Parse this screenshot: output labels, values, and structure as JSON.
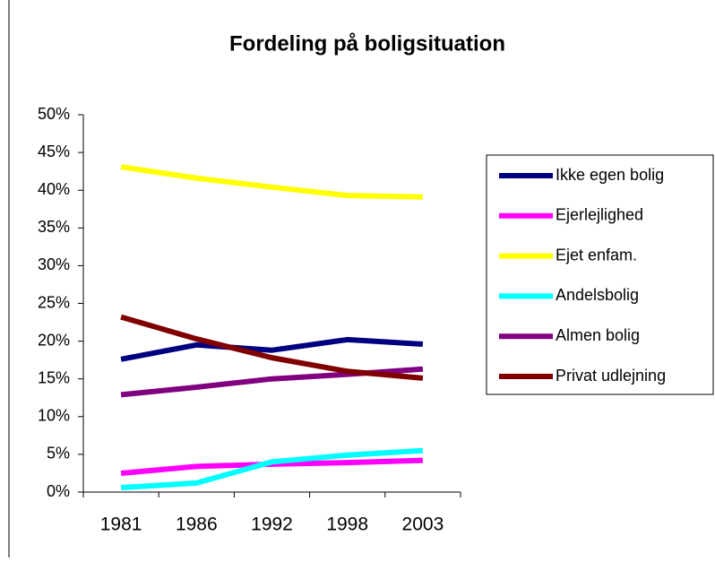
{
  "chart_data": {
    "type": "line",
    "title": "Fordeling på boligsituation",
    "categories": [
      "1981",
      "1986",
      "1992",
      "1998",
      "2003"
    ],
    "series": [
      {
        "name": "Ikke egen bolig",
        "color": "#000080",
        "values": [
          17.6,
          19.5,
          18.8,
          20.2,
          19.6
        ]
      },
      {
        "name": "Ejerlejlighed",
        "color": "#ff00ff",
        "values": [
          2.5,
          3.4,
          3.7,
          3.9,
          4.2
        ]
      },
      {
        "name": "Ejet enfam.",
        "color": "#ffff00",
        "values": [
          43.1,
          41.6,
          40.4,
          39.3,
          39.1
        ]
      },
      {
        "name": "Andelsbolig",
        "color": "#00ffff",
        "values": [
          0.6,
          1.2,
          4.0,
          4.9,
          5.5
        ]
      },
      {
        "name": "Almen bolig",
        "color": "#800080",
        "values": [
          12.9,
          13.9,
          15.0,
          15.6,
          16.3
        ]
      },
      {
        "name": "Privat udlejning",
        "color": "#800000",
        "values": [
          23.2,
          20.3,
          17.8,
          16.0,
          15.1
        ]
      }
    ],
    "ylim": [
      0,
      50
    ],
    "yticks": [
      {
        "value": 0,
        "label": "0%"
      },
      {
        "value": 5,
        "label": "5%"
      },
      {
        "value": 10,
        "label": "10%"
      },
      {
        "value": 15,
        "label": "15%"
      },
      {
        "value": 20,
        "label": "20%"
      },
      {
        "value": 25,
        "label": "25%"
      },
      {
        "value": 30,
        "label": "30%"
      },
      {
        "value": 35,
        "label": "35%"
      },
      {
        "value": 40,
        "label": "40%"
      },
      {
        "value": 45,
        "label": "45%"
      },
      {
        "value": 50,
        "label": "50%"
      }
    ],
    "grid": false,
    "legend": "right"
  }
}
